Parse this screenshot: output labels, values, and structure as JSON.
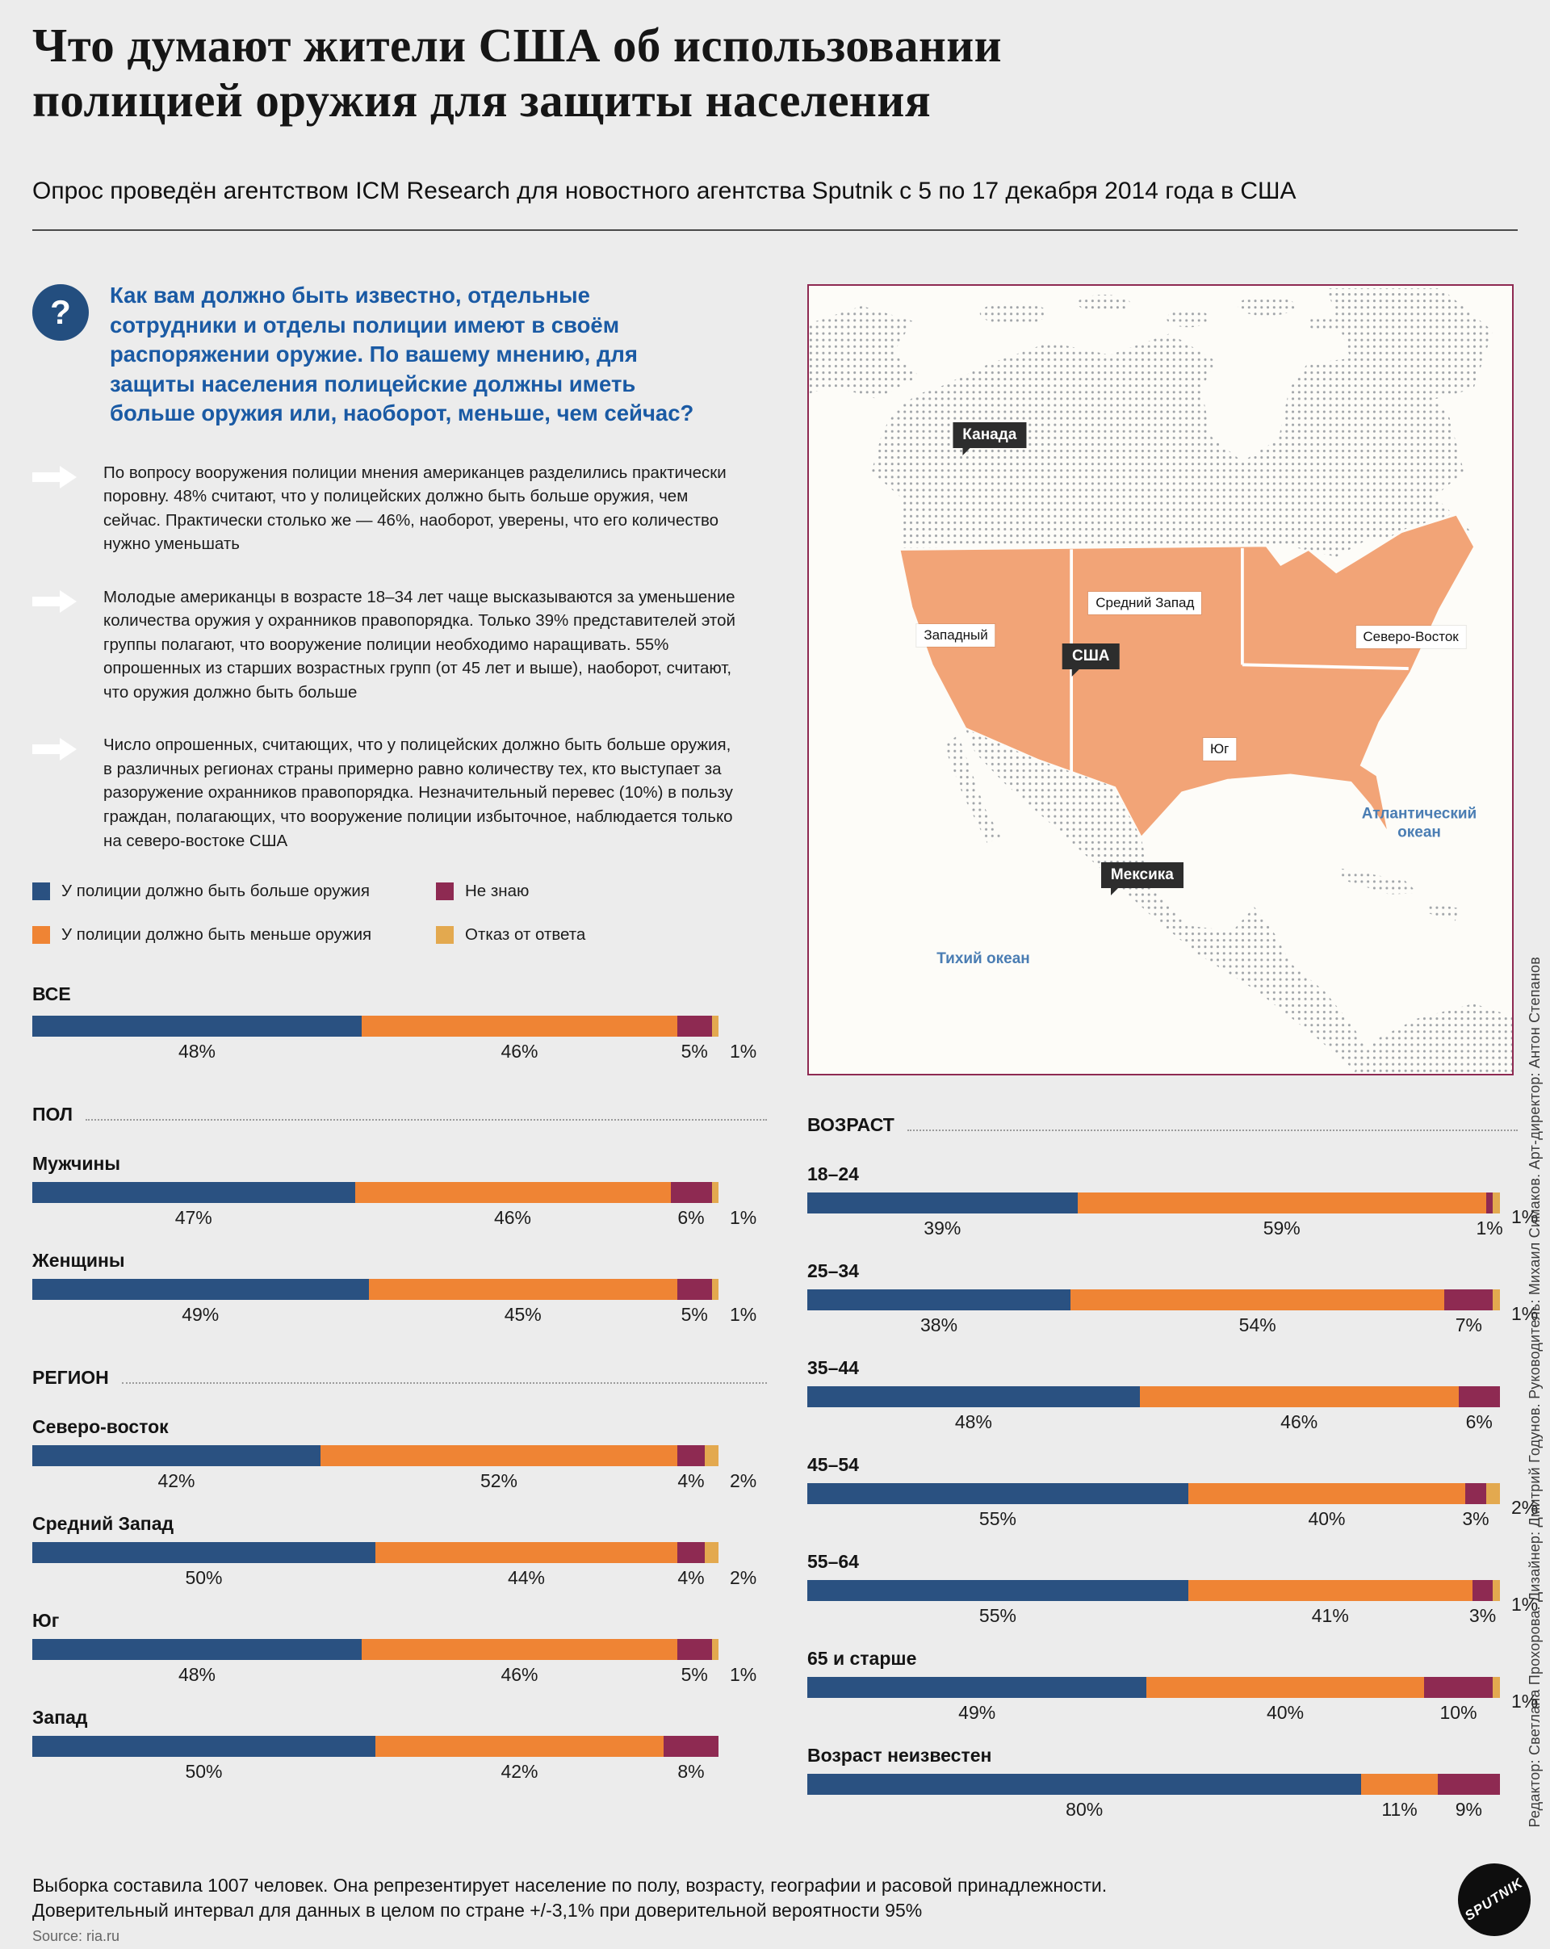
{
  "header": {
    "title": "Что думают жители США об использовании полицией оружия для защиты населения",
    "subtitle": "Опрос проведён агентством ICM Research для новостного агентства Sputnik с 5 по 17 декабря 2014 года в США"
  },
  "question": {
    "mark": "?",
    "text": "Как вам должно быть известно, отдельные сотрудники и отделы полиции имеют в своём распоряжении оружие. По вашему мнению, для защиты населения полицейские должны иметь больше оружия или, наоборот, меньше, чем сейчас?"
  },
  "findings": [
    "По вопросу вооружения полиции мнения американцев разделились практически поровну. 48% считают, что у полицейских должно быть больше оружия, чем сейчас. Практически столько же — 46%, наоборот, уверены, что его количество нужно уменьшать",
    "Молодые американцы в возрасте 18–34 лет чаще высказываются за уменьшение количества оружия у охранников правопорядка. Только 39% представителей этой группы полагают, что вооружение полиции необходимо наращивать. 55% опрошенных из старших возрастных групп (от 45 лет и выше), наоборот, считают, что оружия должно быть больше",
    "Число опрошенных, считающих, что у полицейских должно быть больше оружия, в различных регионах страны примерно равно количеству тех, кто выступает за разоружение охранников правопорядка. Незначительный перевес (10%) в пользу граждан, полагающих, что вооружение полиции избыточное, наблюдается только на северо-востоке США"
  ],
  "legend": [
    {
      "label": "У полиции должно быть больше оружия",
      "color": "#2a5181"
    },
    {
      "label": "У полиции должно быть меньше оружия",
      "color": "#ef8434"
    },
    {
      "label": "Не знаю",
      "color": "#8e2a52"
    },
    {
      "label": "Отказ от ответа",
      "color": "#e3a94f"
    }
  ],
  "map": {
    "labels": {
      "canada": "Канада",
      "usa": "США",
      "mexico": "Мексика",
      "west": "Западный",
      "midwest": "Средний Запад",
      "northeast": "Северо-Восток",
      "south": "Юг",
      "atlantic": "Атлантический океан",
      "pacific": "Тихий океан"
    },
    "usa_fill": "#f2a477"
  },
  "chart_data": {
    "type": "bar",
    "stacked": true,
    "unit": "%",
    "series_names": [
      "У полиции должно быть больше оружия",
      "У полиции должно быть меньше оружия",
      "Не знаю",
      "Отказ от ответа"
    ],
    "colors": [
      "#2a5181",
      "#ef8434",
      "#8e2a52",
      "#e3a94f"
    ],
    "xlim": [
      0,
      100
    ],
    "groups": [
      {
        "id": "all",
        "title": "ВСЕ",
        "rule": false,
        "column": "left",
        "rows": [
          {
            "label": "",
            "values": [
              48,
              46,
              5,
              1
            ],
            "labels": [
              "48%",
              "46%",
              "5%",
              "1%"
            ]
          }
        ]
      },
      {
        "id": "gender",
        "title": "ПОЛ",
        "rule": true,
        "column": "left",
        "rows": [
          {
            "label": "Мужчины",
            "values": [
              47,
              46,
              6,
              1
            ],
            "labels": [
              "47%",
              "46%",
              "6%",
              "1%"
            ]
          },
          {
            "label": "Женщины",
            "values": [
              49,
              45,
              5,
              1
            ],
            "labels": [
              "49%",
              "45%",
              "5%",
              "1%"
            ]
          }
        ]
      },
      {
        "id": "region",
        "title": "РЕГИОН",
        "rule": true,
        "column": "left",
        "rows": [
          {
            "label": "Северо-восток",
            "values": [
              42,
              52,
              4,
              2
            ],
            "labels": [
              "42%",
              "52%",
              "4%",
              "2%"
            ]
          },
          {
            "label": "Средний Запад",
            "values": [
              50,
              44,
              4,
              2
            ],
            "labels": [
              "50%",
              "44%",
              "4%",
              "2%"
            ]
          },
          {
            "label": "Юг",
            "values": [
              48,
              46,
              5,
              1
            ],
            "labels": [
              "48%",
              "46%",
              "5%",
              "1%"
            ]
          },
          {
            "label": "Запад",
            "values": [
              50,
              42,
              8
            ],
            "labels": [
              "50%",
              "42%",
              "8%"
            ]
          }
        ]
      },
      {
        "id": "age",
        "title": "ВОЗРАСТ",
        "rule": true,
        "column": "right",
        "rows": [
          {
            "label": "18–24",
            "values": [
              39,
              59,
              1,
              1
            ],
            "labels": [
              "39%",
              "59%",
              "1%",
              "1%"
            ]
          },
          {
            "label": "25–34",
            "values": [
              38,
              54,
              7,
              1
            ],
            "labels": [
              "38%",
              "54%",
              "7%",
              "1%"
            ]
          },
          {
            "label": "35–44",
            "values": [
              48,
              46,
              6
            ],
            "labels": [
              "48%",
              "46%",
              "6%"
            ]
          },
          {
            "label": "45–54",
            "values": [
              55,
              40,
              3,
              2
            ],
            "labels": [
              "55%",
              "40%",
              "3%",
              "2%"
            ]
          },
          {
            "label": "55–64",
            "values": [
              55,
              41,
              3,
              1
            ],
            "labels": [
              "55%",
              "41%",
              "3%",
              "1%"
            ]
          },
          {
            "label": "65 и старше",
            "values": [
              49,
              40,
              10,
              1
            ],
            "labels": [
              "49%",
              "40%",
              "10%",
              "1%"
            ]
          },
          {
            "label": "Возраст неизвестен",
            "values": [
              80,
              11,
              9
            ],
            "labels": [
              "80%",
              "11%",
              "9%"
            ]
          }
        ]
      }
    ]
  },
  "footer": {
    "line1": "Выборка составила 1007 человек. Она репрезентирует население по полу, возрасту, географии и расовой принадлежности.",
    "line2": "Доверительный интервал для данных в целом по стране +/-3,1% при доверительной вероятности 95%",
    "source": "Source: ria.ru"
  },
  "credits": "Редактор: Светлана Прохорова. Дизайнер: Дмитрий Годунов. Руководитель: Михаил Симаков. Арт-директор: Антон Степанов",
  "logo": "SPUTNIK"
}
